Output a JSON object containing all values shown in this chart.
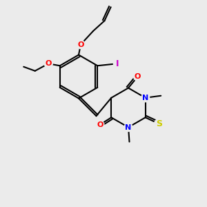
{
  "bg_color": "#ebebeb",
  "bond_color": "#000000",
  "bond_width": 1.5,
  "atom_colors": {
    "O": "#ff0000",
    "N": "#0000ff",
    "S": "#cccc00",
    "I": "#cc00cc",
    "C": "#000000"
  },
  "font_size": 8,
  "fig_size": [
    3.0,
    3.0
  ],
  "dpi": 100
}
